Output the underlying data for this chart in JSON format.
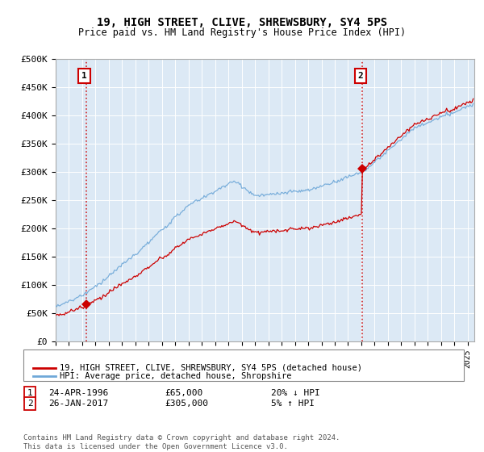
{
  "title": "19, HIGH STREET, CLIVE, SHREWSBURY, SY4 5PS",
  "subtitle": "Price paid vs. HM Land Registry's House Price Index (HPI)",
  "sale1_x": 1996.29,
  "sale1_price": 65000,
  "sale2_x": 2017.08,
  "sale2_price": 305000,
  "legend_line1": "19, HIGH STREET, CLIVE, SHREWSBURY, SY4 5PS (detached house)",
  "legend_line2": "HPI: Average price, detached house, Shropshire",
  "table_row1": [
    "1",
    "24-APR-1996",
    "£65,000",
    "20% ↓ HPI"
  ],
  "table_row2": [
    "2",
    "26-JAN-2017",
    "£305,000",
    "5% ↑ HPI"
  ],
  "footnote": "Contains HM Land Registry data © Crown copyright and database right 2024.\nThis data is licensed under the Open Government Licence v3.0.",
  "hpi_color": "#6fa8d8",
  "price_color": "#cc0000",
  "bg_color": "#dce9f5",
  "grid_color": "#ffffff",
  "ylim_max": 500000,
  "ylim_min": 0,
  "xmin": 1994.0,
  "xmax": 2025.5,
  "yticks": [
    0,
    50000,
    100000,
    150000,
    200000,
    250000,
    300000,
    350000,
    400000,
    450000,
    500000
  ],
  "ylabels": [
    "£0",
    "£50K",
    "£100K",
    "£150K",
    "£200K",
    "£250K",
    "£300K",
    "£350K",
    "£400K",
    "£450K",
    "£500K"
  ]
}
